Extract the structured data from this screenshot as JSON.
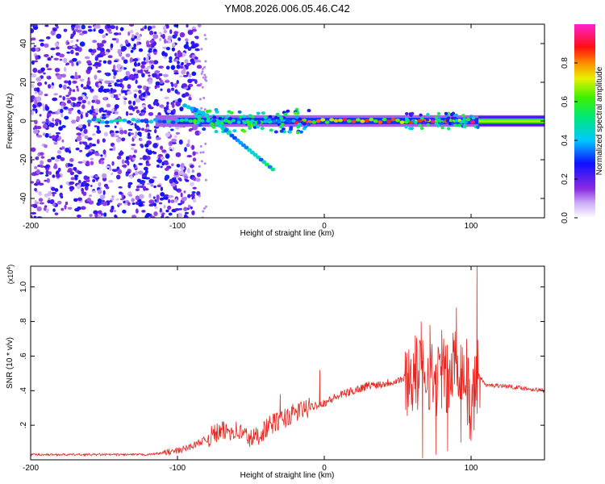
{
  "figure_title": "YM08.2026.006.05.46.C42",
  "chart_data": [
    {
      "type": "heatmap",
      "title": "YM08.2026.006.05.46.C42",
      "xlabel": "Height of straight line (km)",
      "ylabel": "Frequency (Hz)",
      "xlim": [
        -200,
        150
      ],
      "ylim": [
        -50,
        50
      ],
      "xticks": [
        -200,
        -100,
        0,
        100
      ],
      "yticks": [
        -40,
        -20,
        0,
        20,
        40
      ],
      "colorbar": {
        "label": "Normalized spectral amplitude",
        "range": [
          0,
          1
        ],
        "ticks": [
          "0.0",
          "0.2",
          "0.4",
          "0.6",
          "0.8"
        ],
        "tick_values": [
          0,
          0.2,
          0.4,
          0.6,
          0.8
        ],
        "colormap": "rainbow (white to purple to blue to cyan to green to yellow to red to magenta)"
      },
      "features": [
        {
          "name": "diffuse scattered noise",
          "x_range": [
            -200,
            -85
          ],
          "freq_range": [
            -50,
            50
          ],
          "amplitude": [
            0.05,
            0.3
          ]
        },
        {
          "name": "main carrier line",
          "x_range": [
            -160,
            150
          ],
          "frequency": 0,
          "amplitude_peak": 1.0
        },
        {
          "name": "descending doppler branch",
          "x_start": -75,
          "x_end": -35,
          "freq_start": 0,
          "freq_end": -25,
          "amplitude": 0.5
        },
        {
          "name": "ascending doppler branch",
          "x_start": -95,
          "x_end": -80,
          "freq_start": 8,
          "freq_end": 3,
          "amplitude": 0.4
        }
      ]
    },
    {
      "type": "line",
      "xlabel": "Height of straight line (km)",
      "ylabel": "SNR (10 * v/v)",
      "y_multiplier": "(x10",
      "y_multiplier_exp": "4",
      "y_multiplier_close": ")",
      "xlim": [
        -200,
        150
      ],
      "ylim": [
        0,
        1.12
      ],
      "xticks": [
        -200,
        -100,
        0,
        100
      ],
      "yticks": [
        0.2,
        0.4,
        0.6,
        0.8,
        1.0
      ],
      "yticklabels": [
        ".2",
        ".4",
        ".6",
        ".8",
        "1.0"
      ],
      "color": "#e8251f",
      "x": [
        -200,
        -150,
        -120,
        -100,
        -90,
        -80,
        -75,
        -70,
        -65,
        -60,
        -55,
        -50,
        -45,
        -40,
        -35,
        -30,
        -25,
        -20,
        -15,
        -10,
        -5,
        0,
        10,
        20,
        30,
        40,
        50,
        60,
        65,
        70,
        75,
        80,
        85,
        90,
        95,
        100,
        105,
        110,
        120,
        130,
        140,
        150
      ],
      "values": [
        0.03,
        0.03,
        0.03,
        0.05,
        0.08,
        0.12,
        0.15,
        0.16,
        0.17,
        0.17,
        0.15,
        0.12,
        0.14,
        0.18,
        0.21,
        0.23,
        0.25,
        0.27,
        0.29,
        0.3,
        0.32,
        0.33,
        0.37,
        0.4,
        0.43,
        0.44,
        0.46,
        0.48,
        0.5,
        0.52,
        0.45,
        0.5,
        0.45,
        0.6,
        0.5,
        0.3,
        0.5,
        0.43,
        0.43,
        0.42,
        0.41,
        0.4
      ],
      "spikes": [
        {
          "x": -43,
          "y": 0.12
        },
        {
          "x": -30,
          "y": 0.38
        },
        {
          "x": -3,
          "y": 0.52
        },
        {
          "x": 55,
          "y": 0.52
        },
        {
          "x": 62,
          "y": 0.72
        },
        {
          "x": 66,
          "y": 0.8
        },
        {
          "x": 67,
          "y": 0.01
        },
        {
          "x": 72,
          "y": 0.78
        },
        {
          "x": 76,
          "y": 0.03
        },
        {
          "x": 80,
          "y": 0.75
        },
        {
          "x": 84,
          "y": 0.05
        },
        {
          "x": 90,
          "y": 0.88
        },
        {
          "x": 93,
          "y": 0.1
        },
        {
          "x": 97,
          "y": 0.7
        },
        {
          "x": 99,
          "y": 0.12
        },
        {
          "x": 104,
          "y": 1.12
        },
        {
          "x": 106,
          "y": 0.3
        }
      ]
    }
  ]
}
